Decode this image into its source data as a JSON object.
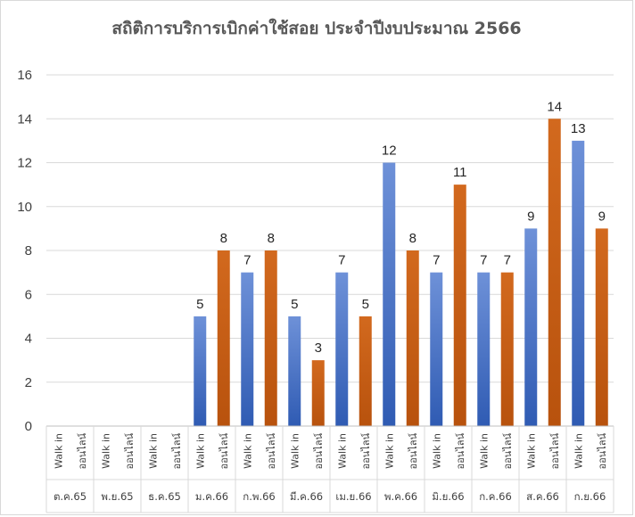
{
  "chart_data": {
    "type": "bar",
    "title": "สถิติการบริการเบิกค่าใช้สอย ประจำปีงบประมาณ 2566",
    "categories": [
      "ต.ค.65",
      "พ.ย.65",
      "ธ.ค.65",
      "ม.ค.66",
      "ก.พ.66",
      "มี.ค.66",
      "เม.ย.66",
      "พ.ค.66",
      "มิ.ย.66",
      "ก.ค.66",
      "ส.ค.66",
      "ก.ย.66"
    ],
    "subcategories": [
      "Walk in",
      "ออนไลน์"
    ],
    "series": [
      {
        "values": [
          null,
          null,
          null,
          5,
          7,
          5,
          7,
          12,
          7,
          7,
          9,
          13
        ],
        "color": "#4472C4"
      },
      {
        "values": [
          null,
          null,
          null,
          8,
          8,
          3,
          5,
          8,
          11,
          7,
          14,
          9
        ],
        "color": "#C55A11"
      }
    ],
    "yticks": [
      0,
      2,
      4,
      6,
      8,
      10,
      12,
      14,
      16
    ],
    "ylim": [
      0,
      16
    ],
    "grid": true,
    "data_labels": true
  }
}
